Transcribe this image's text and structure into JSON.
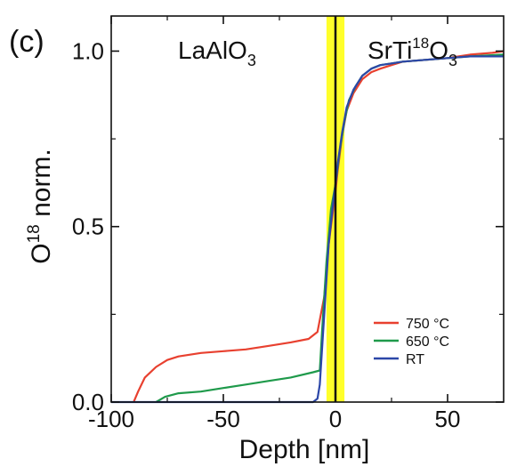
{
  "panel_label": "(c)",
  "chart_data": {
    "type": "line",
    "ylabel": {
      "main": "O",
      "sup": "18",
      "rest": " norm."
    },
    "xlabel": "Depth [nm]",
    "xlim": [
      -100,
      75
    ],
    "ylim": [
      0,
      1.1
    ],
    "x_ticks": [
      -100,
      -50,
      0,
      50
    ],
    "x_tick_labels": [
      "-100",
      "-50",
      "0",
      "50"
    ],
    "y_ticks": [
      0,
      0.5,
      1.0
    ],
    "y_tick_labels": [
      "0.0",
      "0.5",
      "1.0"
    ],
    "region_labels": {
      "left": {
        "base": "LaAlO",
        "sub": "3"
      },
      "right": {
        "a": "SrTi",
        "sup": "18",
        "b": "O",
        "sub": "3"
      }
    },
    "interface_band": {
      "from": -4,
      "to": 4,
      "color": "#ffff2a"
    },
    "interface_line_x": 0,
    "series": [
      {
        "name": "750 °C",
        "color": "#e8402f",
        "x": [
          -90,
          -88,
          -85,
          -80,
          -75,
          -70,
          -60,
          -50,
          -40,
          -30,
          -20,
          -12,
          -8,
          -5,
          -3,
          -1,
          0,
          1,
          3,
          5,
          8,
          12,
          16,
          20,
          25,
          30,
          40,
          50,
          60,
          70,
          75
        ],
        "y": [
          0.0,
          0.03,
          0.07,
          0.1,
          0.12,
          0.13,
          0.14,
          0.145,
          0.15,
          0.16,
          0.17,
          0.18,
          0.2,
          0.3,
          0.45,
          0.55,
          0.6,
          0.66,
          0.76,
          0.83,
          0.88,
          0.92,
          0.94,
          0.95,
          0.96,
          0.97,
          0.975,
          0.98,
          0.99,
          0.995,
          1.0
        ]
      },
      {
        "name": "650 °C",
        "color": "#1f9a4b",
        "x": [
          -80,
          -76,
          -70,
          -60,
          -50,
          -40,
          -30,
          -20,
          -10,
          -7,
          -6,
          -4,
          -2,
          0,
          2,
          4,
          6,
          9,
          12,
          16,
          20,
          25,
          30,
          40,
          50,
          60,
          75
        ],
        "y": [
          0.0,
          0.015,
          0.025,
          0.03,
          0.04,
          0.05,
          0.06,
          0.07,
          0.085,
          0.09,
          0.2,
          0.4,
          0.55,
          0.62,
          0.72,
          0.8,
          0.86,
          0.9,
          0.93,
          0.95,
          0.96,
          0.965,
          0.97,
          0.975,
          0.98,
          0.985,
          0.99
        ]
      },
      {
        "name": "RT",
        "color": "#2c47a8",
        "x": [
          -100,
          -60,
          -20,
          -10,
          -8,
          -7,
          -5,
          -3,
          -1,
          0,
          1,
          3,
          5,
          8,
          12,
          16,
          20,
          25,
          30,
          40,
          50,
          60,
          75
        ],
        "y": [
          0.0,
          0.0,
          0.0,
          0.0,
          0.01,
          0.05,
          0.25,
          0.45,
          0.57,
          0.62,
          0.68,
          0.77,
          0.84,
          0.89,
          0.93,
          0.95,
          0.96,
          0.965,
          0.97,
          0.975,
          0.98,
          0.985,
          0.985
        ]
      }
    ],
    "legend_position": "bottom-right",
    "grid": false
  }
}
